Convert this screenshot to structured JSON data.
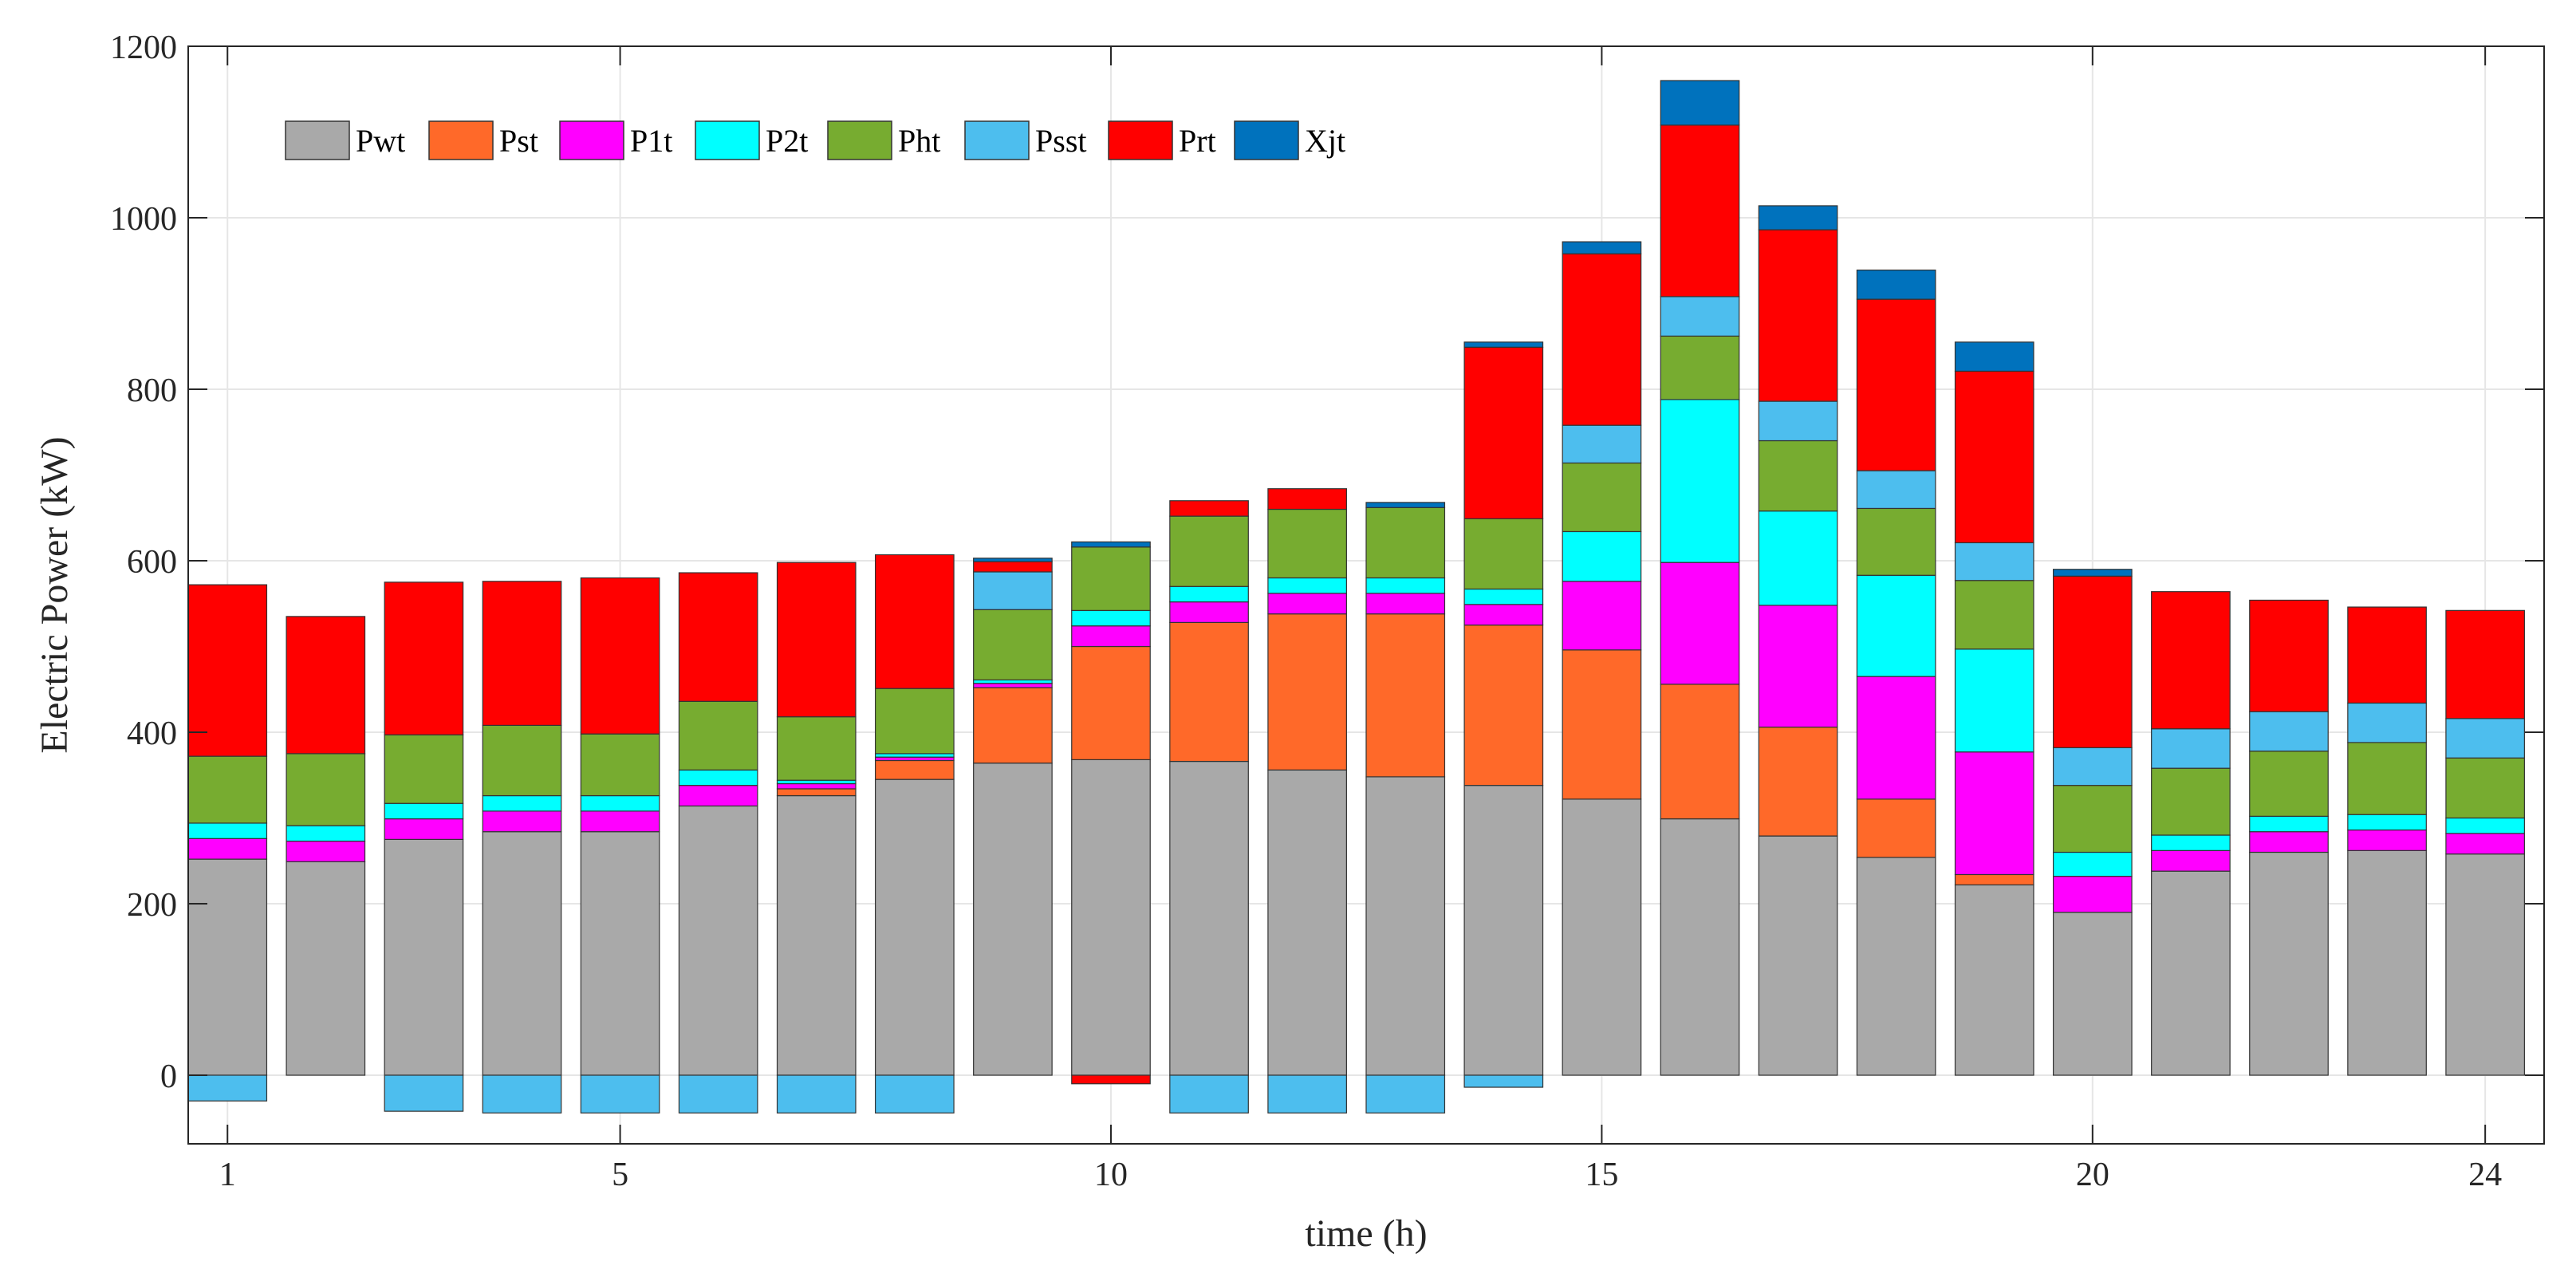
{
  "chart_data": {
    "type": "bar",
    "stacked": true,
    "title": "",
    "xlabel": "time (h)",
    "ylabel": "Electric Power (kW)",
    "ylim": [
      -80,
      1200
    ],
    "xlim": [
      0.6,
      24.6
    ],
    "yticks": [
      0,
      200,
      400,
      600,
      800,
      1000,
      1200
    ],
    "xticks": [
      1,
      5,
      10,
      15,
      20,
      24
    ],
    "ytick_labels": [
      "0",
      "200",
      "400",
      "600",
      "800",
      "1000",
      "1200"
    ],
    "xtick_labels": [
      "1",
      "5",
      "10",
      "15",
      "20",
      "24"
    ],
    "grid": true,
    "legend_position": "top-left",
    "categories": [
      1,
      2,
      3,
      4,
      5,
      6,
      7,
      8,
      9,
      10,
      11,
      12,
      13,
      14,
      15,
      16,
      17,
      18,
      19,
      20,
      21,
      22,
      23,
      24
    ],
    "series": [
      {
        "name": "Pwt",
        "color": "#a9a9a9",
        "values": [
          252,
          249,
          275,
          284,
          284,
          314,
          326,
          345,
          364,
          368,
          366,
          356,
          348,
          338,
          322,
          299,
          279,
          254,
          222,
          190,
          238,
          260,
          262,
          258
        ]
      },
      {
        "name": "Pst",
        "color": "#ff6929",
        "values": [
          0,
          0,
          0,
          0,
          0,
          0,
          8,
          22,
          88,
          132,
          162,
          182,
          190,
          187,
          174,
          157,
          127,
          68,
          12,
          0,
          0,
          0,
          0,
          0
        ]
      },
      {
        "name": "P1t",
        "color": "#ff00ff",
        "values": [
          24,
          24,
          24,
          24,
          24,
          24,
          6,
          4,
          5,
          24,
          24,
          24,
          24,
          24,
          80,
          142,
          142,
          143,
          143,
          42,
          24,
          24,
          24,
          24
        ]
      },
      {
        "name": "P2t",
        "color": "#00ffff",
        "values": [
          18,
          18,
          18,
          18,
          18,
          18,
          4,
          4,
          4,
          18,
          18,
          18,
          18,
          18,
          58,
          190,
          110,
          118,
          120,
          28,
          18,
          18,
          18,
          18
        ]
      },
      {
        "name": "Pht",
        "color": "#77ac30",
        "values": [
          78,
          84,
          80,
          82,
          72,
          80,
          74,
          76,
          82,
          74,
          82,
          80,
          82,
          82,
          80,
          74,
          82,
          78,
          80,
          78,
          78,
          76,
          84,
          70
        ]
      },
      {
        "name": "Psst",
        "color": "#4dbeee",
        "values": [
          -30,
          0,
          -42,
          -44,
          -44,
          -44,
          -44,
          -44,
          44,
          0,
          -44,
          -44,
          -44,
          -14,
          44,
          46,
          46,
          44,
          44,
          44,
          46,
          46,
          46,
          46
        ]
      },
      {
        "name": "Prt",
        "color": "#ff0000",
        "values": [
          200,
          160,
          178,
          168,
          182,
          150,
          180,
          156,
          12,
          -10,
          18,
          24,
          0,
          200,
          200,
          200,
          200,
          200,
          200,
          200,
          160,
          130,
          112,
          126
        ]
      },
      {
        "name": "Xjt",
        "color": "#0072bd",
        "values": [
          0,
          0,
          0,
          0,
          0,
          0,
          0,
          0,
          4,
          6,
          0,
          0,
          6,
          6,
          14,
          52,
          28,
          34,
          34,
          8,
          0,
          0,
          0,
          0
        ]
      }
    ]
  }
}
